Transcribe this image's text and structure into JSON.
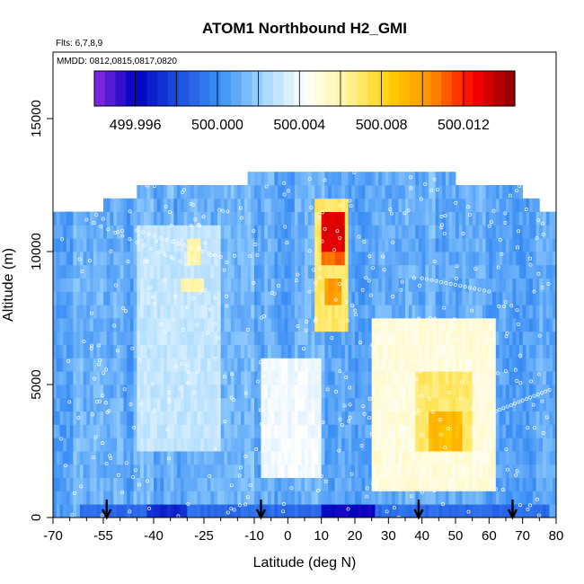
{
  "chart_data": {
    "type": "heatmap",
    "title": "ATOM1 Northbound H2_GMI",
    "flights_note": "Flts: 6,7,8,9",
    "dates_note": "MMDD: 0812,0815,0817,0820",
    "xlabel": "Latitude (deg N)",
    "ylabel": "Altitude (m)",
    "xlim": [
      -70,
      80
    ],
    "ylim": [
      0,
      17500
    ],
    "x_ticks": [
      "-70",
      "-55",
      "-40",
      "-25",
      "-10",
      "0",
      "10",
      "20",
      "30",
      "40",
      "50",
      "60",
      "70",
      "80"
    ],
    "x_tick_values": [
      -70,
      -55,
      -40,
      -25,
      -10,
      0,
      10,
      20,
      30,
      40,
      50,
      60,
      70,
      80
    ],
    "x_minor_ticks": [
      -65,
      -60,
      -50,
      -45,
      -35,
      -30,
      -20,
      -15,
      -5,
      5,
      15,
      25,
      35,
      45,
      55,
      65,
      75
    ],
    "y_ticks": [
      "0",
      "5000",
      "10000",
      "15000"
    ],
    "y_tick_values": [
      0,
      5000,
      10000,
      15000
    ],
    "colorbar": {
      "min": 499.994,
      "max": 500.0145,
      "tick_labels": [
        "499.996",
        "500.000",
        "500.004",
        "500.008",
        "500.012"
      ],
      "tick_values": [
        499.996,
        500.0,
        500.004,
        500.008,
        500.012
      ],
      "colors": [
        "#8a2be2",
        "#0000c0",
        "#1e4fe0",
        "#3c8ff5",
        "#9fd6ff",
        "#ffffff",
        "#fff4a0",
        "#ffd000",
        "#ff9000",
        "#ff0000",
        "#8b0000"
      ]
    },
    "value_range": [
      499.996,
      500.014
    ],
    "altitude_bin_m": 500,
    "latitude_bin_deg": 1,
    "arrows_latitude": [
      -54,
      -8,
      39,
      67
    ],
    "column_top_altitude_m": [
      [
        -70,
        11500
      ],
      [
        -65,
        11500
      ],
      [
        -55,
        12000
      ],
      [
        -45,
        12500
      ],
      [
        -25,
        12500
      ],
      [
        -12,
        13000
      ],
      [
        -8,
        13000
      ],
      [
        0,
        13000
      ],
      [
        20,
        13000
      ],
      [
        30,
        13000
      ],
      [
        40,
        13000
      ],
      [
        50,
        12500
      ],
      [
        65,
        12500
      ],
      [
        70,
        12000
      ],
      [
        75,
        11500
      ],
      [
        80,
        7500
      ]
    ],
    "background_value": 500.001,
    "features": [
      {
        "lat": [
          10,
          17
        ],
        "alt": [
          10200,
          11500
        ],
        "value": 500.013
      },
      {
        "lat": [
          10,
          17
        ],
        "alt": [
          9500,
          10200
        ],
        "value": 500.011
      },
      {
        "lat": [
          11,
          16
        ],
        "alt": [
          7800,
          8800
        ],
        "value": 500.01
      },
      {
        "lat": [
          8,
          18
        ],
        "alt": [
          7000,
          11800
        ],
        "value": 500.007
      },
      {
        "lat": [
          38,
          55
        ],
        "alt": [
          2500,
          5500
        ],
        "value": 500.007
      },
      {
        "lat": [
          42,
          52
        ],
        "alt": [
          2500,
          3800
        ],
        "value": 500.009
      },
      {
        "lat": [
          25,
          62
        ],
        "alt": [
          1000,
          7500
        ],
        "value": 500.005
      },
      {
        "lat": [
          -8,
          10
        ],
        "alt": [
          1500,
          6000
        ],
        "value": 500.004
      },
      {
        "lat": [
          -45,
          -20
        ],
        "alt": [
          2500,
          11000
        ],
        "value": 500.003
      },
      {
        "lat": [
          -32,
          -25
        ],
        "alt": [
          8300,
          9000
        ],
        "value": 500.006
      },
      {
        "lat": [
          -30,
          -26
        ],
        "alt": [
          9600,
          10300
        ],
        "value": 500.006
      },
      {
        "lat": [
          -62,
          78
        ],
        "alt": [
          0,
          700
        ],
        "value": 499.999
      },
      {
        "lat": [
          10,
          26
        ],
        "alt": [
          0,
          500
        ],
        "value": 499.996
      },
      {
        "lat": [
          -42,
          -30
        ],
        "alt": [
          0,
          500
        ],
        "value": 499.997
      }
    ]
  }
}
